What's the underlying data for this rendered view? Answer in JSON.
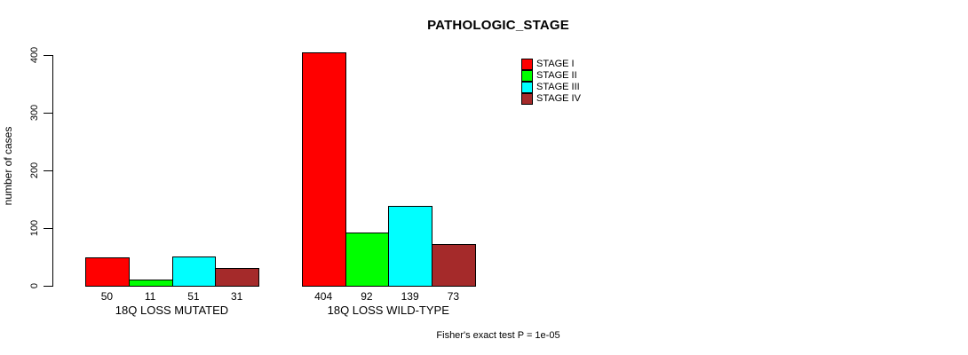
{
  "title": "PATHOLOGIC_STAGE",
  "ylabel": "number of cases",
  "footer": "Fisher's exact test P = 1e-05",
  "legend": [
    {
      "label": "STAGE I",
      "color": "#FF0000"
    },
    {
      "label": "STAGE II",
      "color": "#00FF00"
    },
    {
      "label": "STAGE III",
      "color": "#00FFFF"
    },
    {
      "label": "STAGE IV",
      "color": "#A52A2A"
    }
  ],
  "chart_data": {
    "type": "bar",
    "title": "PATHOLOGIC_STAGE",
    "ylabel": "number of cases",
    "xlabel": "",
    "categories": [
      "18Q LOSS MUTATED",
      "18Q LOSS WILD-TYPE"
    ],
    "series": [
      {
        "name": "STAGE I",
        "color": "#FF0000",
        "values": [
          50,
          404
        ]
      },
      {
        "name": "STAGE II",
        "color": "#00FF00",
        "values": [
          11,
          92
        ]
      },
      {
        "name": "STAGE III",
        "color": "#00FFFF",
        "values": [
          51,
          139
        ]
      },
      {
        "name": "STAGE IV",
        "color": "#A52A2A",
        "values": [
          31,
          73
        ]
      }
    ],
    "bar_value_labels": [
      [
        50,
        11,
        51,
        31
      ],
      [
        404,
        92,
        139,
        73
      ]
    ],
    "yticks": [
      0,
      100,
      200,
      300,
      400
    ],
    "ylim": [
      0,
      400
    ],
    "grid": false,
    "legend_position": "top-right",
    "annotation": "Fisher's exact test P = 1e-05"
  }
}
